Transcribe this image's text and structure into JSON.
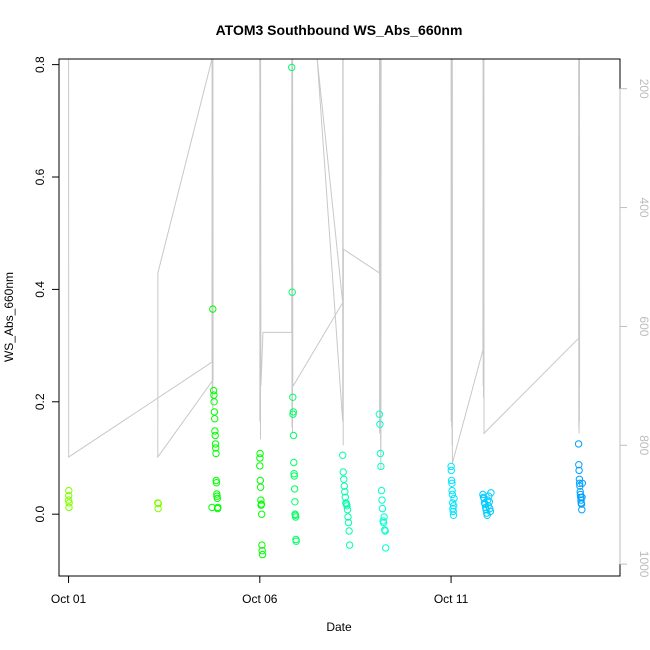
{
  "chart_data": {
    "type": "scatter",
    "title": "ATOM3 Southbound WS_Abs_660nm",
    "xlabel": "Date",
    "ylabel": "WS_Abs_660nm",
    "xlim": [
      "2016-09-30T18:00",
      "2016-10-15T10:00"
    ],
    "ylim": [
      -0.11,
      0.81
    ],
    "x_ticks": [
      {
        "label": "Oct 01",
        "value": "2016-10-01T00:00"
      },
      {
        "label": "Oct 06",
        "value": "2016-10-06T00:00"
      },
      {
        "label": "Oct 11",
        "value": "2016-10-11T00:00"
      }
    ],
    "y_ticks": [
      0.0,
      0.2,
      0.4,
      0.6,
      0.8
    ],
    "y2lim": [
      1020,
      150
    ],
    "y2_ticks": [
      200,
      400,
      600,
      800,
      1000
    ],
    "y2_color": "#bdbdbd",
    "grid": false,
    "series": [
      {
        "points": [
          [
            "2016-10-01T00:00",
            0.025
          ],
          [
            "2016-10-01T00:05",
            0.033
          ],
          [
            "2016-10-01T00:10",
            0.042
          ],
          [
            "2016-10-01T00:15",
            0.012
          ],
          [
            "2016-10-01T00:20",
            0.02
          ],
          [
            "2016-10-03T08:00",
            0.02
          ],
          [
            "2016-10-03T08:10",
            0.01
          ],
          [
            "2016-10-03T08:20",
            0.019
          ],
          [
            "2016-10-04T18:00",
            0.012
          ],
          [
            "2016-10-04T18:30",
            0.365
          ],
          [
            "2016-10-04T19:00",
            0.22
          ],
          [
            "2016-10-04T19:10",
            0.212
          ],
          [
            "2016-10-04T19:20",
            0.2
          ],
          [
            "2016-10-04T19:30",
            0.182
          ],
          [
            "2016-10-04T19:40",
            0.17
          ],
          [
            "2016-10-04T19:50",
            0.148
          ],
          [
            "2016-10-04T20:00",
            0.14
          ],
          [
            "2016-10-04T20:10",
            0.125
          ],
          [
            "2016-10-04T20:20",
            0.118
          ],
          [
            "2016-10-04T20:30",
            0.108
          ],
          [
            "2016-10-04T20:40",
            0.06
          ],
          [
            "2016-10-04T20:50",
            0.056
          ],
          [
            "2016-10-04T21:00",
            0.036
          ],
          [
            "2016-10-04T21:10",
            0.032
          ],
          [
            "2016-10-04T21:20",
            0.028
          ],
          [
            "2016-10-04T21:30",
            0.01
          ],
          [
            "2016-10-04T21:40",
            0.012
          ],
          [
            "2016-10-06T00:00",
            0.086
          ],
          [
            "2016-10-06T00:05",
            0.1
          ],
          [
            "2016-10-06T00:10",
            0.108
          ],
          [
            "2016-10-06T00:20",
            0.06
          ],
          [
            "2016-10-06T00:30",
            0.048
          ],
          [
            "2016-10-06T00:40",
            0.025
          ],
          [
            "2016-10-06T00:50",
            0.016
          ],
          [
            "2016-10-06T01:00",
            0.018
          ],
          [
            "2016-10-06T01:10",
            0.0
          ],
          [
            "2016-10-06T01:20",
            -0.055
          ],
          [
            "2016-10-06T01:30",
            -0.065
          ],
          [
            "2016-10-06T01:40",
            -0.072
          ]
        ]
      },
      {
        "points": [
          [
            "2016-10-06T20:00",
            0.795
          ],
          [
            "2016-10-06T20:20",
            0.395
          ],
          [
            "2016-10-06T20:40",
            0.208
          ],
          [
            "2016-10-06T20:50",
            0.178
          ],
          [
            "2016-10-06T21:00",
            0.182
          ],
          [
            "2016-10-06T21:10",
            0.14
          ],
          [
            "2016-10-06T21:20",
            0.092
          ],
          [
            "2016-10-06T21:30",
            0.072
          ],
          [
            "2016-10-06T21:40",
            0.068
          ],
          [
            "2016-10-06T21:50",
            0.045
          ],
          [
            "2016-10-06T22:00",
            0.022
          ],
          [
            "2016-10-06T22:10",
            0.0
          ],
          [
            "2016-10-06T22:20",
            -0.002
          ],
          [
            "2016-10-06T22:30",
            -0.005
          ],
          [
            "2016-10-06T22:40",
            -0.045
          ],
          [
            "2016-10-06T22:50",
            -0.048
          ]
        ]
      },
      {
        "points": [
          [
            "2016-10-08T04:00",
            0.105
          ],
          [
            "2016-10-08T04:20",
            0.075
          ],
          [
            "2016-10-08T04:40",
            0.062
          ],
          [
            "2016-10-08T05:00",
            0.05
          ],
          [
            "2016-10-08T05:20",
            0.04
          ],
          [
            "2016-10-08T05:40",
            0.03
          ],
          [
            "2016-10-08T06:00",
            0.02
          ],
          [
            "2016-10-08T06:20",
            0.018
          ],
          [
            "2016-10-08T06:40",
            0.015
          ],
          [
            "2016-10-08T07:00",
            0.008
          ],
          [
            "2016-10-08T07:20",
            -0.005
          ],
          [
            "2016-10-08T07:40",
            -0.015
          ],
          [
            "2016-10-08T08:00",
            -0.03
          ],
          [
            "2016-10-08T08:20",
            -0.055
          ]
        ]
      },
      {
        "points": [
          [
            "2016-10-09T03:00",
            0.178
          ],
          [
            "2016-10-09T03:20",
            0.16
          ],
          [
            "2016-10-09T03:40",
            0.108
          ],
          [
            "2016-10-09T04:00",
            0.085
          ],
          [
            "2016-10-09T04:20",
            0.042
          ],
          [
            "2016-10-09T04:40",
            0.025
          ],
          [
            "2016-10-09T05:00",
            0.01
          ],
          [
            "2016-10-09T05:20",
            -0.012
          ],
          [
            "2016-10-09T05:40",
            -0.015
          ],
          [
            "2016-10-09T06:00",
            -0.005
          ],
          [
            "2016-10-09T06:20",
            -0.028
          ],
          [
            "2016-10-09T06:40",
            -0.03
          ],
          [
            "2016-10-09T07:00",
            -0.06
          ]
        ]
      },
      {
        "points": [
          [
            "2016-10-11T00:00",
            0.085
          ],
          [
            "2016-10-11T00:10",
            0.078
          ],
          [
            "2016-10-11T00:20",
            0.06
          ],
          [
            "2016-10-11T00:30",
            0.055
          ],
          [
            "2016-10-11T00:40",
            0.042
          ],
          [
            "2016-10-11T00:50",
            0.035
          ],
          [
            "2016-10-11T01:00",
            0.02
          ],
          [
            "2016-10-11T01:10",
            0.01
          ],
          [
            "2016-10-11T01:20",
            0.005
          ],
          [
            "2016-10-11T01:30",
            -0.002
          ],
          [
            "2016-10-11T01:40",
            0.015
          ],
          [
            "2016-10-11T01:50",
            0.028
          ]
        ]
      },
      {
        "points": [
          [
            "2016-10-11T20:00",
            0.035
          ],
          [
            "2016-10-11T20:20",
            0.03
          ],
          [
            "2016-10-11T20:40",
            0.028
          ],
          [
            "2016-10-11T21:00",
            0.02
          ],
          [
            "2016-10-11T21:20",
            0.018
          ],
          [
            "2016-10-11T21:40",
            0.012
          ],
          [
            "2016-10-11T22:00",
            0.008
          ],
          [
            "2016-10-11T22:20",
            0.002
          ],
          [
            "2016-10-11T22:40",
            -0.002
          ],
          [
            "2016-10-11T23:00",
            0.025
          ],
          [
            "2016-10-11T23:20",
            0.015
          ],
          [
            "2016-10-11T23:40",
            0.032
          ],
          [
            "2016-10-12T00:00",
            0.022
          ],
          [
            "2016-10-12T00:20",
            0.01
          ],
          [
            "2016-10-12T00:40",
            0.005
          ],
          [
            "2016-10-12T01:00",
            0.038
          ]
        ]
      },
      {
        "points": [
          [
            "2016-10-14T08:00",
            0.125
          ],
          [
            "2016-10-14T08:10",
            0.088
          ],
          [
            "2016-10-14T08:20",
            0.078
          ],
          [
            "2016-10-14T08:30",
            0.062
          ],
          [
            "2016-10-14T08:40",
            0.055
          ],
          [
            "2016-10-14T08:50",
            0.05
          ],
          [
            "2016-10-14T09:00",
            0.04
          ],
          [
            "2016-10-14T09:10",
            0.035
          ],
          [
            "2016-10-14T09:20",
            0.03
          ],
          [
            "2016-10-14T09:30",
            0.025
          ],
          [
            "2016-10-14T09:40",
            0.02
          ],
          [
            "2016-10-14T09:50",
            0.018
          ],
          [
            "2016-10-14T10:00",
            0.008
          ],
          [
            "2016-10-14T10:10",
            0.03
          ],
          [
            "2016-10-14T10:20",
            0.055
          ]
        ]
      }
    ],
    "series_colors": [
      "#00ff00",
      "#00ff66",
      "#00ffaa",
      "#00ffcc",
      "#00e5ff",
      "#00ccff",
      "#00a0ff"
    ],
    "first_series_color_start": "#80ff00",
    "overlay_line": {
      "color": "#c8c8c8",
      "axis": "y2",
      "points": [
        [
          "2016-10-01T00:00",
          150
        ],
        [
          "2016-10-01T00:05",
          820
        ],
        [
          "2016-10-04T18:00",
          660
        ],
        [
          "2016-10-04T18:05",
          150
        ],
        [
          "2016-10-04T18:10",
          720
        ],
        [
          "2016-10-04T18:15",
          150
        ],
        [
          "2016-10-04T18:20",
          700
        ],
        [
          "2016-10-04T18:25",
          150
        ],
        [
          "2016-10-04T18:30",
          740
        ],
        [
          "2016-10-04T18:35",
          150
        ],
        [
          "2016-10-04T18:40",
          690
        ],
        [
          "2016-10-03T08:00",
          820
        ],
        [
          "2016-10-03T08:05",
          510
        ],
        [
          "2016-10-04T18:00",
          150
        ],
        [
          "2016-10-06T00:00",
          150
        ],
        [
          "2016-10-06T00:05",
          760
        ],
        [
          "2016-10-06T00:10",
          150
        ],
        [
          "2016-10-06T00:15",
          740
        ],
        [
          "2016-10-06T00:20",
          150
        ],
        [
          "2016-10-06T00:25",
          790
        ],
        [
          "2016-10-06T00:30",
          150
        ],
        [
          "2016-10-06T00:40",
          700
        ],
        [
          "2016-10-06T02:00",
          610
        ],
        [
          "2016-10-06T20:00",
          610
        ],
        [
          "2016-10-06T20:05",
          150
        ],
        [
          "2016-10-06T20:10",
          770
        ],
        [
          "2016-10-06T20:15",
          150
        ],
        [
          "2016-10-06T20:20",
          730
        ],
        [
          "2016-10-06T20:25",
          150
        ],
        [
          "2016-10-06T20:30",
          780
        ],
        [
          "2016-10-06T20:35",
          150
        ],
        [
          "2016-10-06T20:40",
          700
        ],
        [
          "2016-10-06T21:00",
          700
        ],
        [
          "2016-10-08T04:00",
          560
        ],
        [
          "2016-10-07T12:00",
          150
        ],
        [
          "2016-10-08T04:00",
          760
        ],
        [
          "2016-10-08T04:05",
          150
        ],
        [
          "2016-10-08T04:10",
          760
        ],
        [
          "2016-10-08T04:15",
          150
        ],
        [
          "2016-10-08T04:20",
          800
        ],
        [
          "2016-10-08T04:25",
          470
        ],
        [
          "2016-10-09T03:00",
          510
        ],
        [
          "2016-10-09T03:05",
          150
        ],
        [
          "2016-10-09T03:10",
          780
        ],
        [
          "2016-10-09T03:15",
          300
        ],
        [
          "2016-10-09T03:20",
          760
        ],
        [
          "2016-10-09T03:25",
          660
        ],
        [
          "2016-10-09T03:30",
          150
        ],
        [
          "2016-10-09T03:40",
          540
        ],
        [
          "2016-10-09T03:45",
          770
        ],
        [
          "2016-10-09T04:00",
          840
        ],
        [
          "2016-10-09T04:05",
          150
        ],
        [
          "2016-10-11T00:00",
          150
        ],
        [
          "2016-10-11T00:05",
          760
        ],
        [
          "2016-10-11T00:10",
          150
        ],
        [
          "2016-10-11T00:15",
          700
        ],
        [
          "2016-10-11T00:20",
          150
        ],
        [
          "2016-10-11T00:25",
          770
        ],
        [
          "2016-10-11T00:30",
          150
        ],
        [
          "2016-10-11T00:35",
          540
        ],
        [
          "2016-10-11T00:40",
          800
        ],
        [
          "2016-10-11T00:45",
          150
        ],
        [
          "2016-10-11T00:50",
          830
        ],
        [
          "2016-10-11T20:00",
          640
        ],
        [
          "2016-10-11T20:05",
          150
        ],
        [
          "2016-10-11T20:10",
          700
        ],
        [
          "2016-10-11T20:15",
          150
        ],
        [
          "2016-10-11T20:20",
          720
        ],
        [
          "2016-10-11T20:25",
          150
        ],
        [
          "2016-10-11T20:30",
          690
        ],
        [
          "2016-10-11T20:35",
          150
        ],
        [
          "2016-10-11T20:40",
          780
        ],
        [
          "2016-10-14T08:00",
          620
        ],
        [
          "2016-10-14T08:05",
          150
        ],
        [
          "2016-10-14T08:10",
          770
        ],
        [
          "2016-10-14T08:15",
          150
        ],
        [
          "2016-10-14T08:20",
          780
        ],
        [
          "2016-10-14T08:25",
          150
        ],
        [
          "2016-10-14T08:30",
          760
        ],
        [
          "2016-10-14T08:35",
          150
        ],
        [
          "2016-10-14T08:40",
          700
        ]
      ]
    }
  }
}
